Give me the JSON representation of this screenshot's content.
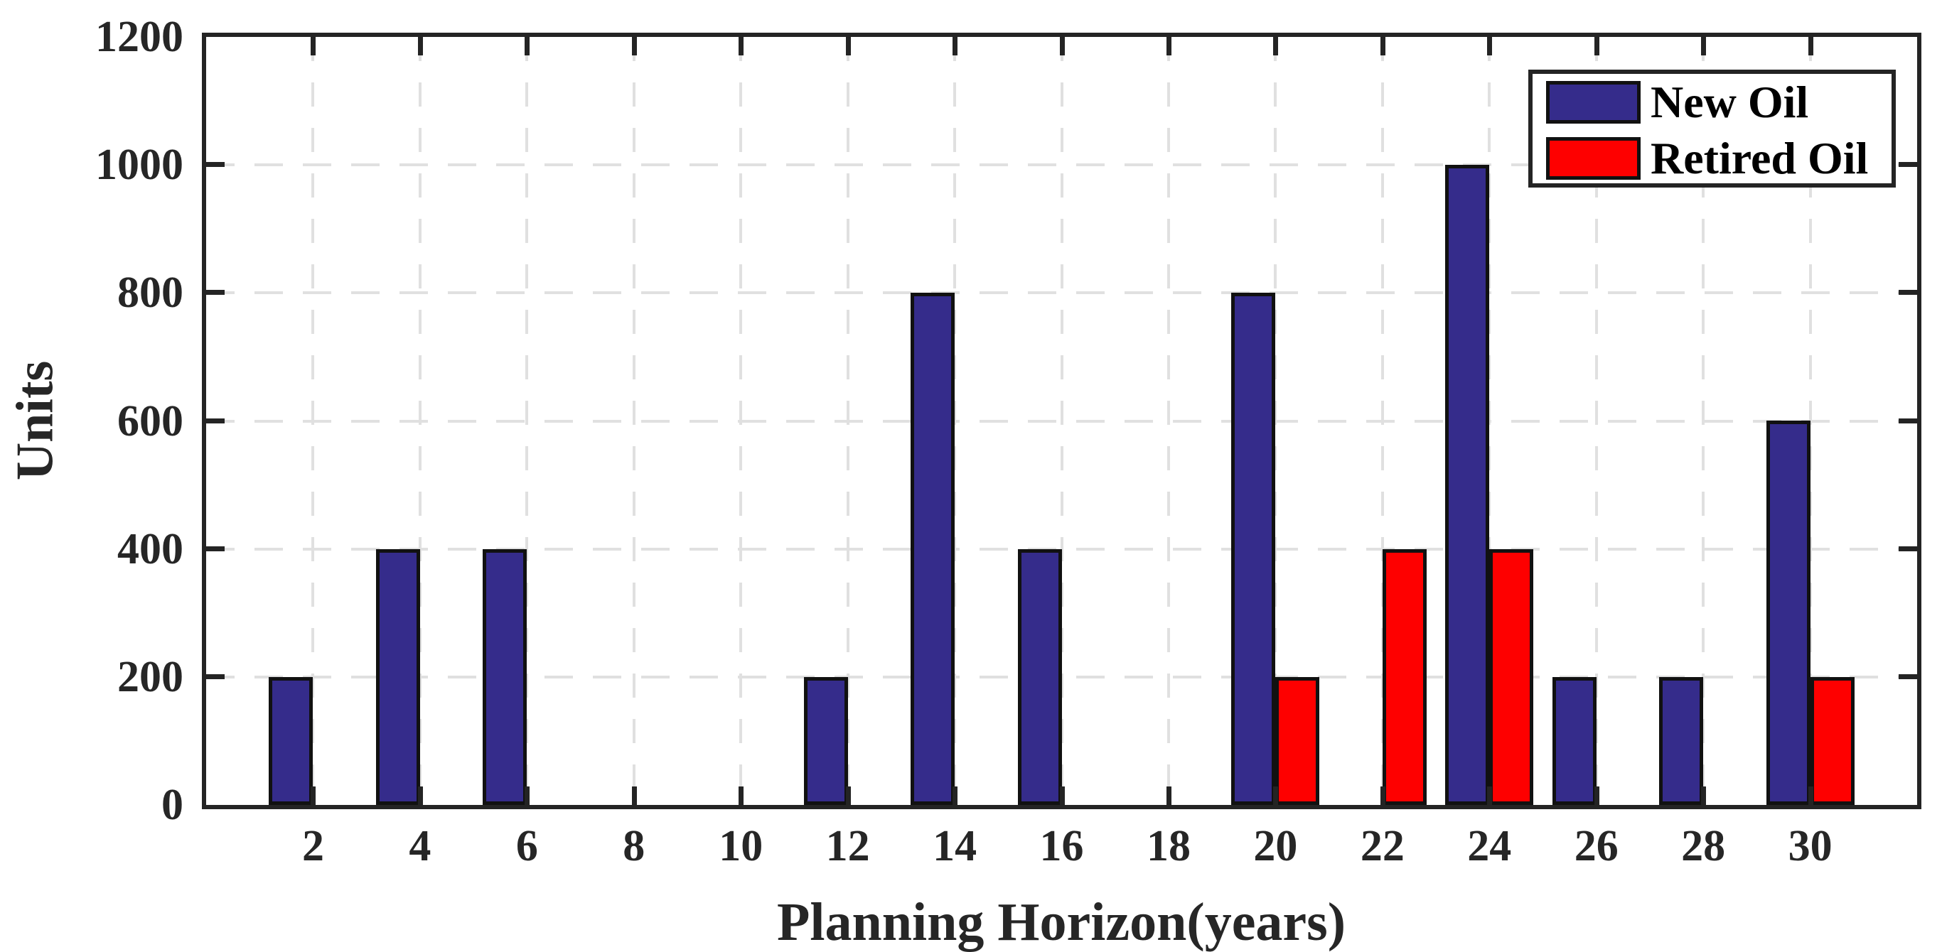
{
  "figure": {
    "background": "#ffffff",
    "frame_color": "#242424",
    "text_color": "#262626",
    "grid_color": "#e0e0e0",
    "bar_edge_color": "#111111"
  },
  "chart_data": {
    "type": "bar",
    "title": "",
    "xlabel": "Planning Horizon(years)",
    "ylabel": "Units",
    "categories": [
      2,
      4,
      6,
      8,
      10,
      12,
      14,
      16,
      18,
      20,
      22,
      24,
      26,
      28,
      30
    ],
    "series": [
      {
        "name": "New Oil",
        "color": "#352c8b",
        "values": [
          200,
          400,
          400,
          0,
          0,
          200,
          800,
          400,
          0,
          800,
          0,
          1000,
          200,
          200,
          600
        ]
      },
      {
        "name": "Retired Oil",
        "color": "#fe0000",
        "values": [
          0,
          0,
          0,
          0,
          0,
          0,
          0,
          0,
          0,
          200,
          400,
          400,
          0,
          0,
          200
        ]
      }
    ],
    "xlim": [
      0,
      32
    ],
    "ylim": [
      0,
      1200
    ],
    "yticks": [
      0,
      200,
      400,
      600,
      800,
      1000,
      1200
    ],
    "grid": true,
    "grid_style": "dashed",
    "legend_position": "top-right",
    "legend_entries": [
      "New Oil",
      "Retired Oil"
    ]
  }
}
